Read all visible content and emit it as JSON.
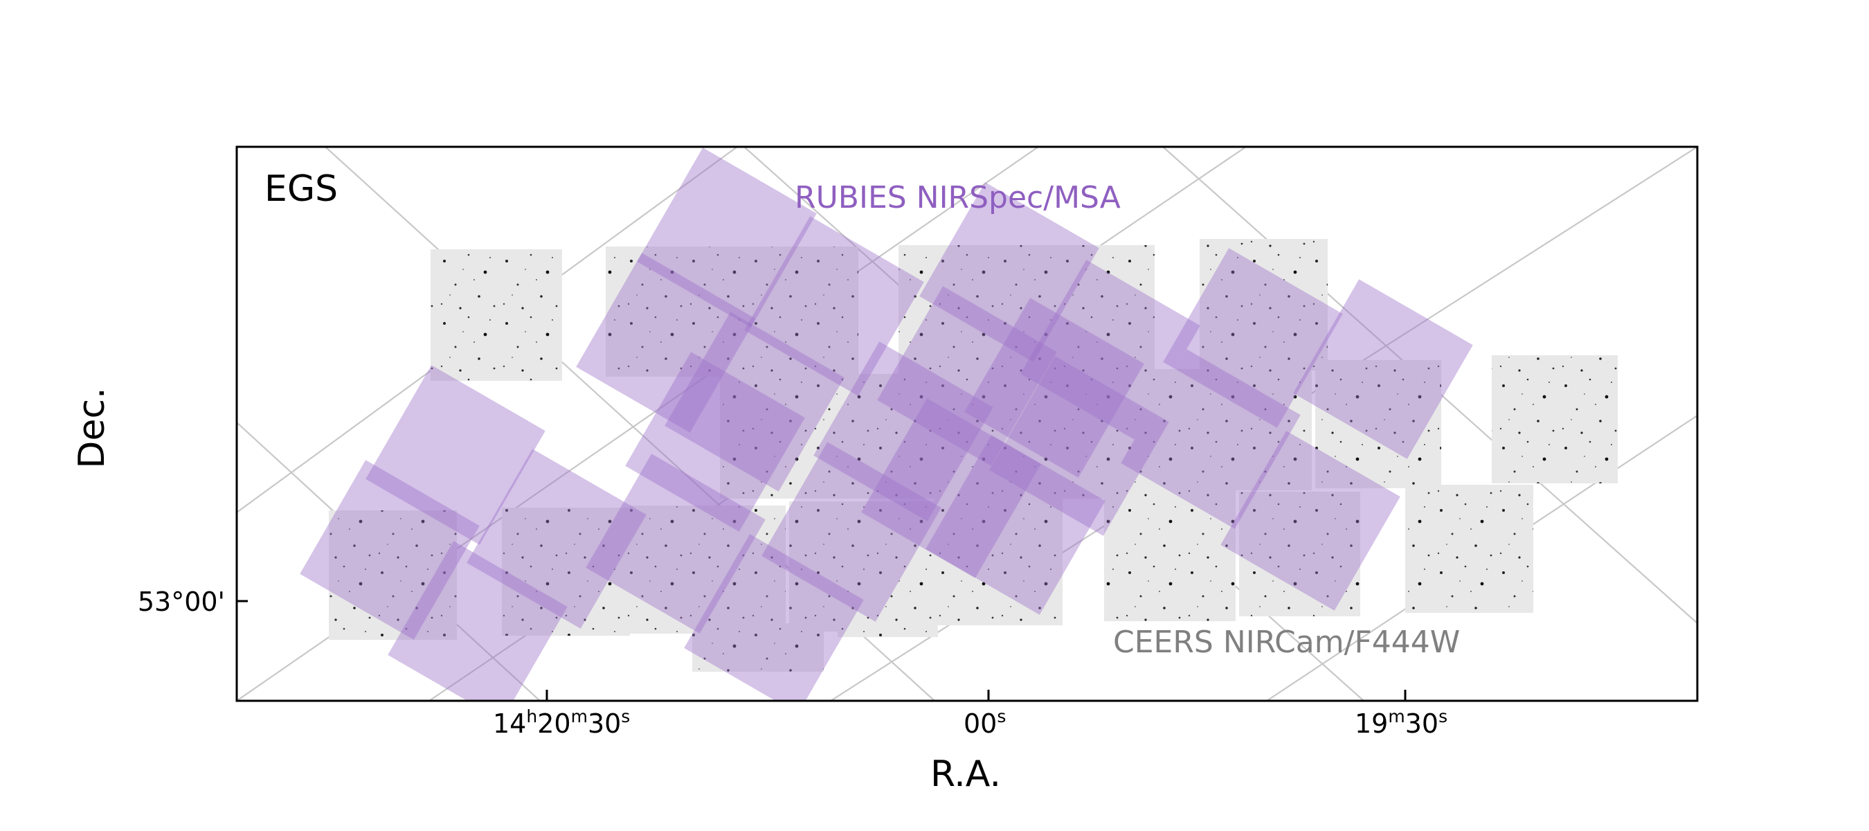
{
  "field_label": "EGS",
  "overlay_label": "RUBIES NIRSpec/MSA",
  "image_label": "CEERS NIRCam/F444W",
  "axes": {
    "xlabel": "R.A.",
    "ylabel": "Dec.",
    "x_ticks": [
      {
        "h": "14",
        "m": "20",
        "s": "30"
      },
      {
        "s": "00"
      },
      {
        "m": "19",
        "s": "30"
      }
    ],
    "y_ticks": [
      "53°00'"
    ]
  },
  "colors": {
    "overlay": "#9a6fc9",
    "overlay_text": "#8f5fc0",
    "image_text": "#808080",
    "grid": "#c8c8c8",
    "tile": "#e6e6e6"
  }
}
